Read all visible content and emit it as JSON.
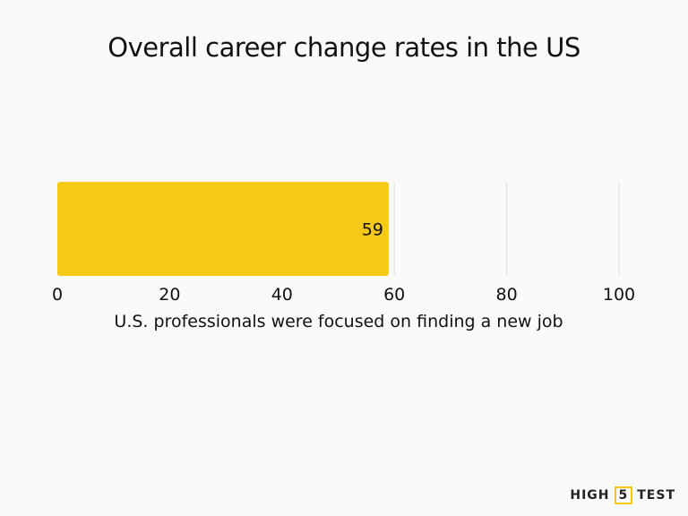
{
  "chart_data": {
    "type": "bar",
    "orientation": "horizontal",
    "title": "Overall career change rates in the US",
    "xlabel": "U.S. professionals were focused on finding a new job",
    "ylabel": "",
    "categories": [
      ""
    ],
    "values": [
      59
    ],
    "data_labels": [
      "59"
    ],
    "xlim": [
      0,
      100
    ],
    "xticks": [
      0,
      20,
      40,
      60,
      80,
      100
    ],
    "xtick_labels": [
      "0",
      "20",
      "40",
      "60",
      "80",
      "100"
    ],
    "grid": "vertical",
    "bar_color": "#f5c918",
    "grid_color": "#dddddd"
  },
  "logo": {
    "left": "HIGH",
    "mid": "5",
    "right": "TEST"
  }
}
